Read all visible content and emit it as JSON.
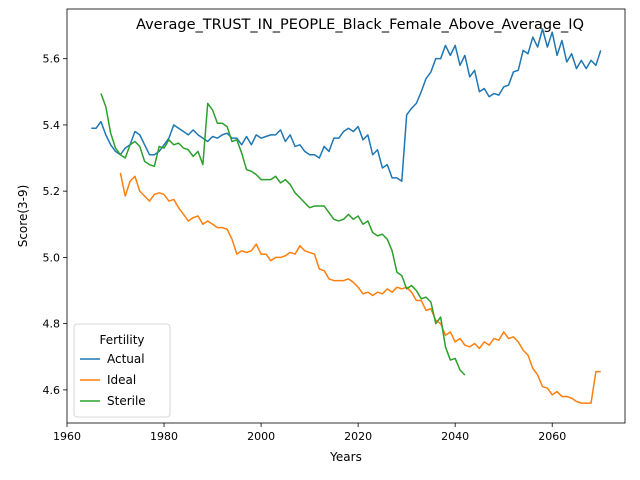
{
  "chart_data": {
    "type": "line",
    "title": "Average_TRUST_IN_PEOPLE_Black_Female_Above_Average_IQ",
    "xlabel": "Years",
    "ylabel": "Score(3-9)",
    "xlim": [
      1960,
      2075
    ],
    "ylim": [
      4.5,
      5.75
    ],
    "xticks": [
      1960,
      1980,
      2000,
      2020,
      2040,
      2060
    ],
    "yticks": [
      4.6,
      4.8,
      5.0,
      5.2,
      5.4,
      5.6
    ],
    "xtick_labels": [
      "1960",
      "1980",
      "2000",
      "2020",
      "2040",
      "2060"
    ],
    "ytick_labels": [
      "4.6",
      "4.8",
      "5.0",
      "5.2",
      "5.4",
      "5.6"
    ],
    "grid": false,
    "legend": {
      "title": "Fertility",
      "location": "lower left"
    },
    "series": [
      {
        "name": "Actual",
        "color": "#1f77b4",
        "x": [
          1965,
          1966,
          1967,
          1968,
          1969,
          1970,
          1971,
          1972,
          1973,
          1974,
          1975,
          1976,
          1977,
          1978,
          1979,
          1980,
          1981,
          1982,
          1983,
          1984,
          1985,
          1986,
          1987,
          1988,
          1989,
          1990,
          1991,
          1992,
          1993,
          1994,
          1995,
          1996,
          1997,
          1998,
          1999,
          2000,
          2001,
          2002,
          2003,
          2004,
          2005,
          2006,
          2007,
          2008,
          2009,
          2010,
          2011,
          2012,
          2013,
          2014,
          2015,
          2016,
          2017,
          2018,
          2019,
          2020,
          2021,
          2022,
          2023,
          2024,
          2025,
          2026,
          2027,
          2028,
          2029,
          2030,
          2031,
          2032,
          2033,
          2034,
          2035,
          2036,
          2037,
          2038,
          2039,
          2040,
          2041,
          2042,
          2043,
          2044,
          2045,
          2046,
          2047,
          2048,
          2049,
          2050,
          2051,
          2052,
          2053,
          2054,
          2055,
          2056,
          2057,
          2058,
          2059,
          2060,
          2061,
          2062,
          2063,
          2064,
          2065,
          2066,
          2067,
          2068,
          2069,
          2070
        ],
        "y": [
          5.39,
          5.39,
          5.41,
          5.37,
          5.34,
          5.32,
          5.31,
          5.33,
          5.34,
          5.38,
          5.37,
          5.34,
          5.31,
          5.31,
          5.32,
          5.34,
          5.36,
          5.4,
          5.39,
          5.38,
          5.37,
          5.385,
          5.37,
          5.36,
          5.35,
          5.365,
          5.36,
          5.37,
          5.375,
          5.36,
          5.36,
          5.34,
          5.365,
          5.34,
          5.37,
          5.36,
          5.365,
          5.37,
          5.37,
          5.385,
          5.35,
          5.37,
          5.335,
          5.34,
          5.32,
          5.31,
          5.31,
          5.3,
          5.335,
          5.32,
          5.36,
          5.36,
          5.38,
          5.39,
          5.38,
          5.395,
          5.355,
          5.37,
          5.31,
          5.325,
          5.27,
          5.28,
          5.24,
          5.24,
          5.23,
          5.43,
          5.45,
          5.465,
          5.5,
          5.54,
          5.56,
          5.6,
          5.6,
          5.64,
          5.61,
          5.64,
          5.58,
          5.61,
          5.545,
          5.565,
          5.5,
          5.51,
          5.485,
          5.495,
          5.49,
          5.515,
          5.52,
          5.56,
          5.565,
          5.625,
          5.615,
          5.665,
          5.635,
          5.69,
          5.635,
          5.68,
          5.61,
          5.655,
          5.59,
          5.615,
          5.57,
          5.595,
          5.57,
          5.595,
          5.58,
          5.625
        ]
      },
      {
        "name": "Ideal",
        "color": "#ff7f0e",
        "x": [
          1971,
          1972,
          1973,
          1974,
          1975,
          1976,
          1977,
          1978,
          1979,
          1980,
          1981,
          1982,
          1983,
          1984,
          1985,
          1986,
          1987,
          1988,
          1989,
          1990,
          1991,
          1992,
          1993,
          1994,
          1995,
          1996,
          1997,
          1998,
          1999,
          2000,
          2001,
          2002,
          2003,
          2004,
          2005,
          2006,
          2007,
          2008,
          2009,
          2010,
          2011,
          2012,
          2013,
          2014,
          2015,
          2016,
          2017,
          2018,
          2019,
          2020,
          2021,
          2022,
          2023,
          2024,
          2025,
          2026,
          2027,
          2028,
          2029,
          2030,
          2031,
          2032,
          2033,
          2034,
          2035,
          2036,
          2037,
          2038,
          2039,
          2040,
          2041,
          2042,
          2043,
          2044,
          2045,
          2046,
          2047,
          2048,
          2049,
          2050,
          2051,
          2052,
          2053,
          2054,
          2055,
          2056,
          2057,
          2058,
          2059,
          2060,
          2061,
          2062,
          2063,
          2064,
          2065,
          2066,
          2067,
          2068,
          2069,
          2070
        ],
        "y": [
          5.255,
          5.185,
          5.23,
          5.245,
          5.2,
          5.185,
          5.17,
          5.19,
          5.195,
          5.19,
          5.17,
          5.175,
          5.15,
          5.13,
          5.11,
          5.12,
          5.125,
          5.1,
          5.11,
          5.1,
          5.09,
          5.09,
          5.085,
          5.055,
          5.01,
          5.02,
          5.015,
          5.02,
          5.04,
          5.01,
          5.01,
          4.99,
          5.0,
          5.0,
          5.005,
          5.015,
          5.01,
          5.035,
          5.02,
          5.015,
          5.01,
          4.965,
          4.96,
          4.935,
          4.93,
          4.93,
          4.93,
          4.935,
          4.925,
          4.91,
          4.89,
          4.895,
          4.885,
          4.895,
          4.89,
          4.905,
          4.895,
          4.91,
          4.905,
          4.91,
          4.895,
          4.87,
          4.87,
          4.84,
          4.845,
          4.81,
          4.8,
          4.765,
          4.775,
          4.745,
          4.755,
          4.735,
          4.73,
          4.74,
          4.725,
          4.745,
          4.735,
          4.755,
          4.75,
          4.775,
          4.755,
          4.76,
          4.745,
          4.72,
          4.705,
          4.665,
          4.645,
          4.61,
          4.605,
          4.585,
          4.595,
          4.58,
          4.58,
          4.575,
          4.565,
          4.56,
          4.56,
          4.56,
          4.655,
          4.655
        ]
      },
      {
        "name": "Sterile",
        "color": "#2ca02c",
        "x": [
          1967,
          1968,
          1969,
          1970,
          1971,
          1972,
          1973,
          1974,
          1975,
          1976,
          1977,
          1978,
          1979,
          1980,
          1981,
          1982,
          1983,
          1984,
          1985,
          1986,
          1987,
          1988,
          1989,
          1990,
          1991,
          1992,
          1993,
          1994,
          1995,
          1996,
          1997,
          1998,
          1999,
          2000,
          2001,
          2002,
          2003,
          2004,
          2005,
          2006,
          2007,
          2008,
          2009,
          2010,
          2011,
          2012,
          2013,
          2014,
          2015,
          2016,
          2017,
          2018,
          2019,
          2020,
          2021,
          2022,
          2023,
          2024,
          2025,
          2026,
          2027,
          2028,
          2029,
          2030,
          2031,
          2032,
          2033,
          2034,
          2035,
          2036,
          2037,
          2038,
          2039,
          2040,
          2041,
          2042
        ],
        "y": [
          5.495,
          5.455,
          5.375,
          5.33,
          5.31,
          5.3,
          5.34,
          5.35,
          5.335,
          5.29,
          5.28,
          5.275,
          5.335,
          5.33,
          5.355,
          5.34,
          5.345,
          5.33,
          5.325,
          5.305,
          5.32,
          5.28,
          5.465,
          5.445,
          5.405,
          5.405,
          5.395,
          5.35,
          5.355,
          5.315,
          5.265,
          5.26,
          5.25,
          5.235,
          5.235,
          5.235,
          5.245,
          5.225,
          5.235,
          5.22,
          5.195,
          5.18,
          5.165,
          5.15,
          5.155,
          5.155,
          5.155,
          5.135,
          5.115,
          5.11,
          5.115,
          5.13,
          5.115,
          5.125,
          5.1,
          5.11,
          5.075,
          5.065,
          5.07,
          5.055,
          5.02,
          4.955,
          4.945,
          4.905,
          4.915,
          4.9,
          4.875,
          4.88,
          4.865,
          4.8,
          4.82,
          4.73,
          4.69,
          4.695,
          4.66,
          4.645
        ]
      }
    ]
  }
}
